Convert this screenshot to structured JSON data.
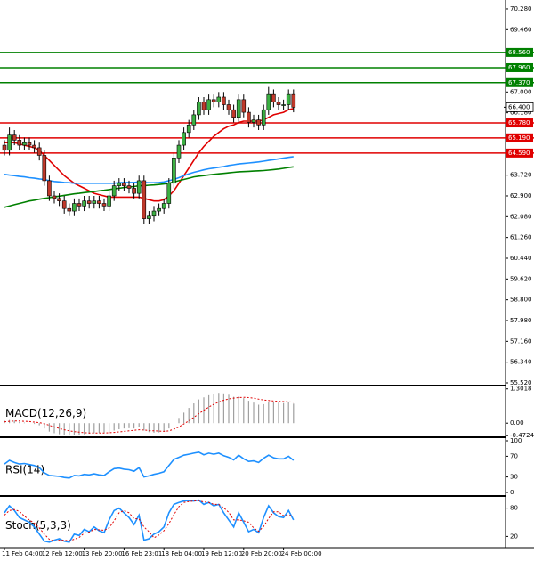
{
  "chart_data": [
    {
      "type": "candlestick",
      "categories": [
        "11 Feb 04:00",
        null,
        null,
        null,
        null,
        null,
        null,
        null,
        "12 Feb 12:00",
        null,
        null,
        null,
        null,
        null,
        null,
        null,
        "13 Feb 20:00",
        null,
        null,
        null,
        null,
        null,
        null,
        null,
        "16 Feb 23:01",
        null,
        null,
        null,
        null,
        null,
        null,
        null,
        "18 Feb 04:00",
        null,
        null,
        null,
        null,
        null,
        null,
        null,
        "19 Feb 12:00",
        null,
        null,
        null,
        null,
        null,
        null,
        null,
        "20 Feb 20:00",
        null,
        null,
        null,
        null,
        null,
        null,
        null,
        "24 Feb 00:00",
        null,
        null
      ],
      "open": [
        64.9,
        64.7,
        65.3,
        65.1,
        64.9,
        65.0,
        64.9,
        64.8,
        64.5,
        63.5,
        62.9,
        62.8,
        62.7,
        62.4,
        62.3,
        62.6,
        62.5,
        62.7,
        62.6,
        62.7,
        62.6,
        62.5,
        62.9,
        63.3,
        63.4,
        63.3,
        63.2,
        63.0,
        63.5,
        62.0,
        62.1,
        62.3,
        62.4,
        62.6,
        63.4,
        64.4,
        64.9,
        65.4,
        65.7,
        66.1,
        66.6,
        66.3,
        66.7,
        66.6,
        66.8,
        66.5,
        66.3,
        66.0,
        66.7,
        66.2,
        65.8,
        65.9,
        65.7,
        66.3,
        66.9,
        66.6,
        66.5,
        66.5,
        66.9
      ],
      "high": [
        65.1,
        65.6,
        65.5,
        65.3,
        65.2,
        65.2,
        65.1,
        65.0,
        64.7,
        63.7,
        63.1,
        63.0,
        62.9,
        62.6,
        62.8,
        62.8,
        62.9,
        62.9,
        62.9,
        62.9,
        62.8,
        63.1,
        63.5,
        63.6,
        63.6,
        63.5,
        63.4,
        63.7,
        63.7,
        62.3,
        62.5,
        62.6,
        62.8,
        63.6,
        64.6,
        65.1,
        65.6,
        65.9,
        66.3,
        66.8,
        66.8,
        66.9,
        66.9,
        67.0,
        67.0,
        66.7,
        66.5,
        66.9,
        66.9,
        66.4,
        66.1,
        66.1,
        66.5,
        67.2,
        67.1,
        66.8,
        66.7,
        67.1,
        67.1
      ],
      "low": [
        64.5,
        64.5,
        64.9,
        64.7,
        64.7,
        64.7,
        64.6,
        64.3,
        63.3,
        62.7,
        62.6,
        62.5,
        62.2,
        62.1,
        62.1,
        62.3,
        62.3,
        62.4,
        62.4,
        62.4,
        62.3,
        62.3,
        62.7,
        63.1,
        63.1,
        63.0,
        62.8,
        62.8,
        61.8,
        61.8,
        61.9,
        62.1,
        62.2,
        62.4,
        63.2,
        64.2,
        64.7,
        65.2,
        65.5,
        65.9,
        66.1,
        66.1,
        66.4,
        66.4,
        66.3,
        66.1,
        65.8,
        65.8,
        66.0,
        65.6,
        65.6,
        65.5,
        65.5,
        66.1,
        66.4,
        66.3,
        66.3,
        66.3,
        66.2
      ],
      "close": [
        64.7,
        65.3,
        65.1,
        64.9,
        65.0,
        64.9,
        64.8,
        64.5,
        63.5,
        62.9,
        62.8,
        62.7,
        62.4,
        62.3,
        62.6,
        62.5,
        62.7,
        62.6,
        62.7,
        62.6,
        62.5,
        62.9,
        63.3,
        63.4,
        63.3,
        63.2,
        63.0,
        63.5,
        62.0,
        62.1,
        62.3,
        62.4,
        62.6,
        63.4,
        64.4,
        64.9,
        65.4,
        65.7,
        66.1,
        66.6,
        66.3,
        66.7,
        66.6,
        66.8,
        66.5,
        66.3,
        66.0,
        66.7,
        66.2,
        65.8,
        65.9,
        65.7,
        66.3,
        66.9,
        66.6,
        66.5,
        66.5,
        66.9,
        66.4
      ],
      "bull_color": "#3cb043",
      "bear_color": "#c0392b",
      "series": [
        {
          "color": "#e00000",
          "style": "solid",
          "values": [
            65.0,
            65.0,
            65.0,
            64.95,
            64.9,
            64.85,
            64.8,
            64.7,
            64.5,
            64.3,
            64.1,
            63.9,
            63.7,
            63.55,
            63.4,
            63.3,
            63.2,
            63.1,
            63.0,
            62.95,
            62.9,
            62.85,
            62.85,
            62.85,
            62.85,
            62.85,
            62.85,
            62.85,
            62.8,
            62.75,
            62.7,
            62.7,
            62.75,
            62.9,
            63.1,
            63.4,
            63.7,
            64.0,
            64.3,
            64.6,
            64.85,
            65.05,
            65.25,
            65.4,
            65.55,
            65.65,
            65.7,
            65.8,
            65.85,
            65.85,
            65.85,
            65.85,
            65.9,
            66.0,
            66.1,
            66.15,
            66.2,
            66.3,
            66.35
          ]
        },
        {
          "color": "#1e90ff",
          "style": "solid",
          "values": [
            63.75,
            63.72,
            63.7,
            63.67,
            63.65,
            63.62,
            63.6,
            63.57,
            63.55,
            63.5,
            63.47,
            63.45,
            63.43,
            63.42,
            63.4,
            63.4,
            63.4,
            63.4,
            63.4,
            63.4,
            63.4,
            63.4,
            63.4,
            63.42,
            63.43,
            63.43,
            63.43,
            63.45,
            63.43,
            63.42,
            63.42,
            63.43,
            63.45,
            63.5,
            63.55,
            63.62,
            63.7,
            63.77,
            63.83,
            63.88,
            63.93,
            63.97,
            64.0,
            64.03,
            64.06,
            64.1,
            64.13,
            64.16,
            64.18,
            64.2,
            64.22,
            64.24,
            64.27,
            64.3,
            64.33,
            64.36,
            64.39,
            64.42,
            64.45
          ]
        },
        {
          "color": "#008000",
          "style": "solid",
          "values": [
            62.45,
            62.5,
            62.55,
            62.6,
            62.65,
            62.7,
            62.73,
            62.77,
            62.8,
            62.83,
            62.86,
            62.89,
            62.92,
            62.95,
            62.98,
            63.0,
            63.03,
            63.05,
            63.07,
            63.1,
            63.12,
            63.15,
            63.18,
            63.2,
            63.23,
            63.25,
            63.27,
            63.3,
            63.3,
            63.32,
            63.33,
            63.35,
            63.37,
            63.4,
            63.45,
            63.5,
            63.55,
            63.6,
            63.65,
            63.68,
            63.7,
            63.73,
            63.75,
            63.77,
            63.79,
            63.81,
            63.83,
            63.85,
            63.86,
            63.87,
            63.88,
            63.89,
            63.9,
            63.92,
            63.94,
            63.96,
            63.99,
            64.02,
            64.05
          ]
        }
      ],
      "levels": [
        {
          "value": 68.56,
          "label": "68.560",
          "color": "#008000"
        },
        {
          "value": 67.96,
          "label": "67.960",
          "color": "#008000"
        },
        {
          "value": 67.37,
          "label": "67.370",
          "color": "#008000"
        },
        {
          "value": 65.78,
          "label": "65.780",
          "color": "#e00000"
        },
        {
          "value": 65.19,
          "label": "65.190",
          "color": "#e00000"
        },
        {
          "value": 64.59,
          "label": "64.590",
          "color": "#e00000"
        }
      ],
      "current_price": {
        "value": 66.4,
        "label": "66.400"
      },
      "ylim": [
        55.45,
        70.63
      ],
      "yticks": [
        {
          "value": 70.28,
          "label": "70.280"
        },
        {
          "value": 69.46,
          "label": "69.460"
        },
        {
          "value": 67.0,
          "label": "67.000"
        },
        {
          "value": 66.18,
          "label": "66.180"
        },
        {
          "value": 63.72,
          "label": "63.720"
        },
        {
          "value": 62.9,
          "label": "62.900"
        },
        {
          "value": 62.08,
          "label": "62.080"
        },
        {
          "value": 61.26,
          "label": "61.260"
        },
        {
          "value": 60.44,
          "label": "60.440"
        },
        {
          "value": 59.62,
          "label": "59.620"
        },
        {
          "value": 58.8,
          "label": "58.800"
        },
        {
          "value": 57.98,
          "label": "57.980"
        },
        {
          "value": 57.16,
          "label": "57.160"
        },
        {
          "value": 56.34,
          "label": "56.340"
        },
        {
          "value": 55.52,
          "label": "55.520"
        }
      ]
    },
    {
      "type": "macd",
      "title": "MACD(12,26,9)",
      "series": [
        {
          "color": "#a0a0a0",
          "style": "histogram",
          "values": [
            0.1,
            0.12,
            0.1,
            0.05,
            0.02,
            0.0,
            -0.03,
            -0.08,
            -0.2,
            -0.32,
            -0.38,
            -0.42,
            -0.46,
            -0.47,
            -0.45,
            -0.44,
            -0.42,
            -0.4,
            -0.38,
            -0.37,
            -0.36,
            -0.33,
            -0.28,
            -0.23,
            -0.2,
            -0.19,
            -0.2,
            -0.16,
            -0.28,
            -0.34,
            -0.36,
            -0.35,
            -0.32,
            -0.2,
            0.0,
            0.2,
            0.4,
            0.58,
            0.75,
            0.9,
            0.98,
            1.06,
            1.1,
            1.15,
            1.13,
            1.08,
            1.0,
            1.02,
            0.95,
            0.85,
            0.78,
            0.7,
            0.72,
            0.8,
            0.8,
            0.78,
            0.76,
            0.8,
            0.74
          ]
        },
        {
          "color": "#e00000",
          "style": "dotted",
          "values": [
            0.05,
            0.07,
            0.08,
            0.08,
            0.07,
            0.06,
            0.04,
            0.02,
            -0.02,
            -0.08,
            -0.14,
            -0.2,
            -0.25,
            -0.29,
            -0.32,
            -0.34,
            -0.36,
            -0.37,
            -0.37,
            -0.37,
            -0.37,
            -0.36,
            -0.35,
            -0.33,
            -0.31,
            -0.29,
            -0.27,
            -0.25,
            -0.26,
            -0.28,
            -0.29,
            -0.3,
            -0.31,
            -0.29,
            -0.23,
            -0.14,
            -0.03,
            0.09,
            0.22,
            0.36,
            0.49,
            0.61,
            0.72,
            0.8,
            0.87,
            0.92,
            0.95,
            0.97,
            0.98,
            0.97,
            0.95,
            0.91,
            0.88,
            0.86,
            0.84,
            0.83,
            0.82,
            0.81,
            0.8
          ]
        }
      ],
      "ylim": [
        -0.5,
        1.36
      ],
      "yticks": [
        1.3018,
        {
          "value": 0,
          "label": "0.00"
        },
        -0.4724
      ]
    },
    {
      "type": "line",
      "title": "RSI(14)",
      "series": [
        {
          "color": "#1e90ff",
          "style": "solid",
          "values": [
            55,
            62,
            58,
            55,
            56,
            54,
            52,
            48,
            38,
            33,
            32,
            31,
            29,
            28,
            33,
            32,
            35,
            34,
            36,
            34,
            33,
            40,
            46,
            47,
            45,
            44,
            41,
            48,
            30,
            32,
            35,
            37,
            40,
            52,
            64,
            68,
            72,
            74,
            76,
            78,
            73,
            76,
            74,
            76,
            71,
            68,
            63,
            72,
            65,
            60,
            61,
            58,
            66,
            72,
            67,
            65,
            65,
            70,
            62
          ]
        }
      ],
      "ylim": [
        0,
        100
      ],
      "yticks": [
        100,
        70,
        30,
        0
      ]
    },
    {
      "type": "line",
      "title": "Stoch(5,3,3)",
      "series": [
        {
          "color": "#1e90ff",
          "style": "solid",
          "values": [
            70,
            85,
            75,
            60,
            55,
            50,
            40,
            25,
            10,
            8,
            12,
            15,
            10,
            8,
            25,
            22,
            35,
            30,
            40,
            32,
            28,
            55,
            75,
            80,
            70,
            60,
            45,
            65,
            12,
            15,
            25,
            30,
            40,
            70,
            88,
            92,
            95,
            96,
            95,
            97,
            88,
            92,
            85,
            88,
            70,
            55,
            40,
            70,
            50,
            30,
            35,
            28,
            60,
            85,
            70,
            62,
            60,
            75,
            55
          ]
        },
        {
          "color": "#e00000",
          "style": "dotted",
          "values": [
            65,
            75,
            77,
            73,
            63,
            55,
            48,
            38,
            25,
            14,
            10,
            12,
            12,
            11,
            14,
            18,
            27,
            29,
            35,
            34,
            33,
            38,
            53,
            70,
            75,
            70,
            58,
            57,
            40,
            30,
            17,
            23,
            32,
            47,
            66,
            83,
            92,
            94,
            95,
            96,
            93,
            92,
            88,
            88,
            81,
            71,
            55,
            55,
            53,
            50,
            38,
            31,
            41,
            58,
            72,
            72,
            64,
            65,
            63
          ]
        }
      ],
      "ylim": [
        0,
        100
      ],
      "yticks": [
        80,
        20
      ]
    }
  ]
}
